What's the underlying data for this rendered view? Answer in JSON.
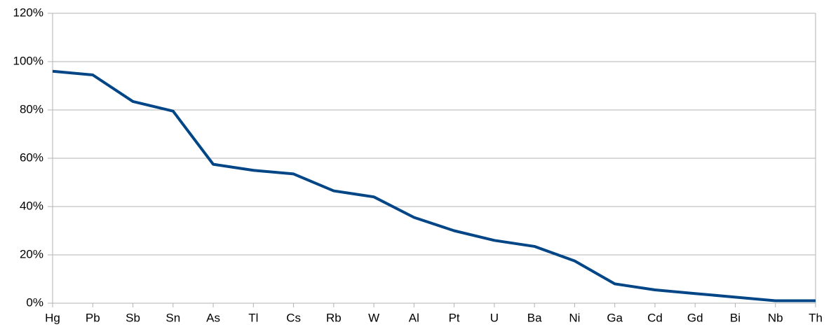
{
  "chart_data": {
    "type": "line",
    "categories": [
      "Hg",
      "Pb",
      "Sb",
      "Sn",
      "As",
      "Tl",
      "Cs",
      "Rb",
      "W",
      "Al",
      "Pt",
      "U",
      "Ba",
      "Ni",
      "Ga",
      "Cd",
      "Gd",
      "Bi",
      "Nb",
      "Th"
    ],
    "values": [
      96,
      94.5,
      83.5,
      79.5,
      57.5,
      55,
      53.5,
      46.5,
      44,
      35.5,
      30,
      26,
      23.5,
      17.5,
      8,
      5.5,
      4,
      2.5,
      1,
      1
    ],
    "color": "#004586",
    "ylim": [
      0,
      120
    ],
    "yticks": [
      {
        "value": 0,
        "label": "0%"
      },
      {
        "value": 20,
        "label": "20%"
      },
      {
        "value": 40,
        "label": "40%"
      },
      {
        "value": 60,
        "label": "60%"
      },
      {
        "value": 80,
        "label": "80%"
      },
      {
        "value": 100,
        "label": "100%"
      },
      {
        "value": 120,
        "label": "120%"
      }
    ],
    "grid": true
  }
}
